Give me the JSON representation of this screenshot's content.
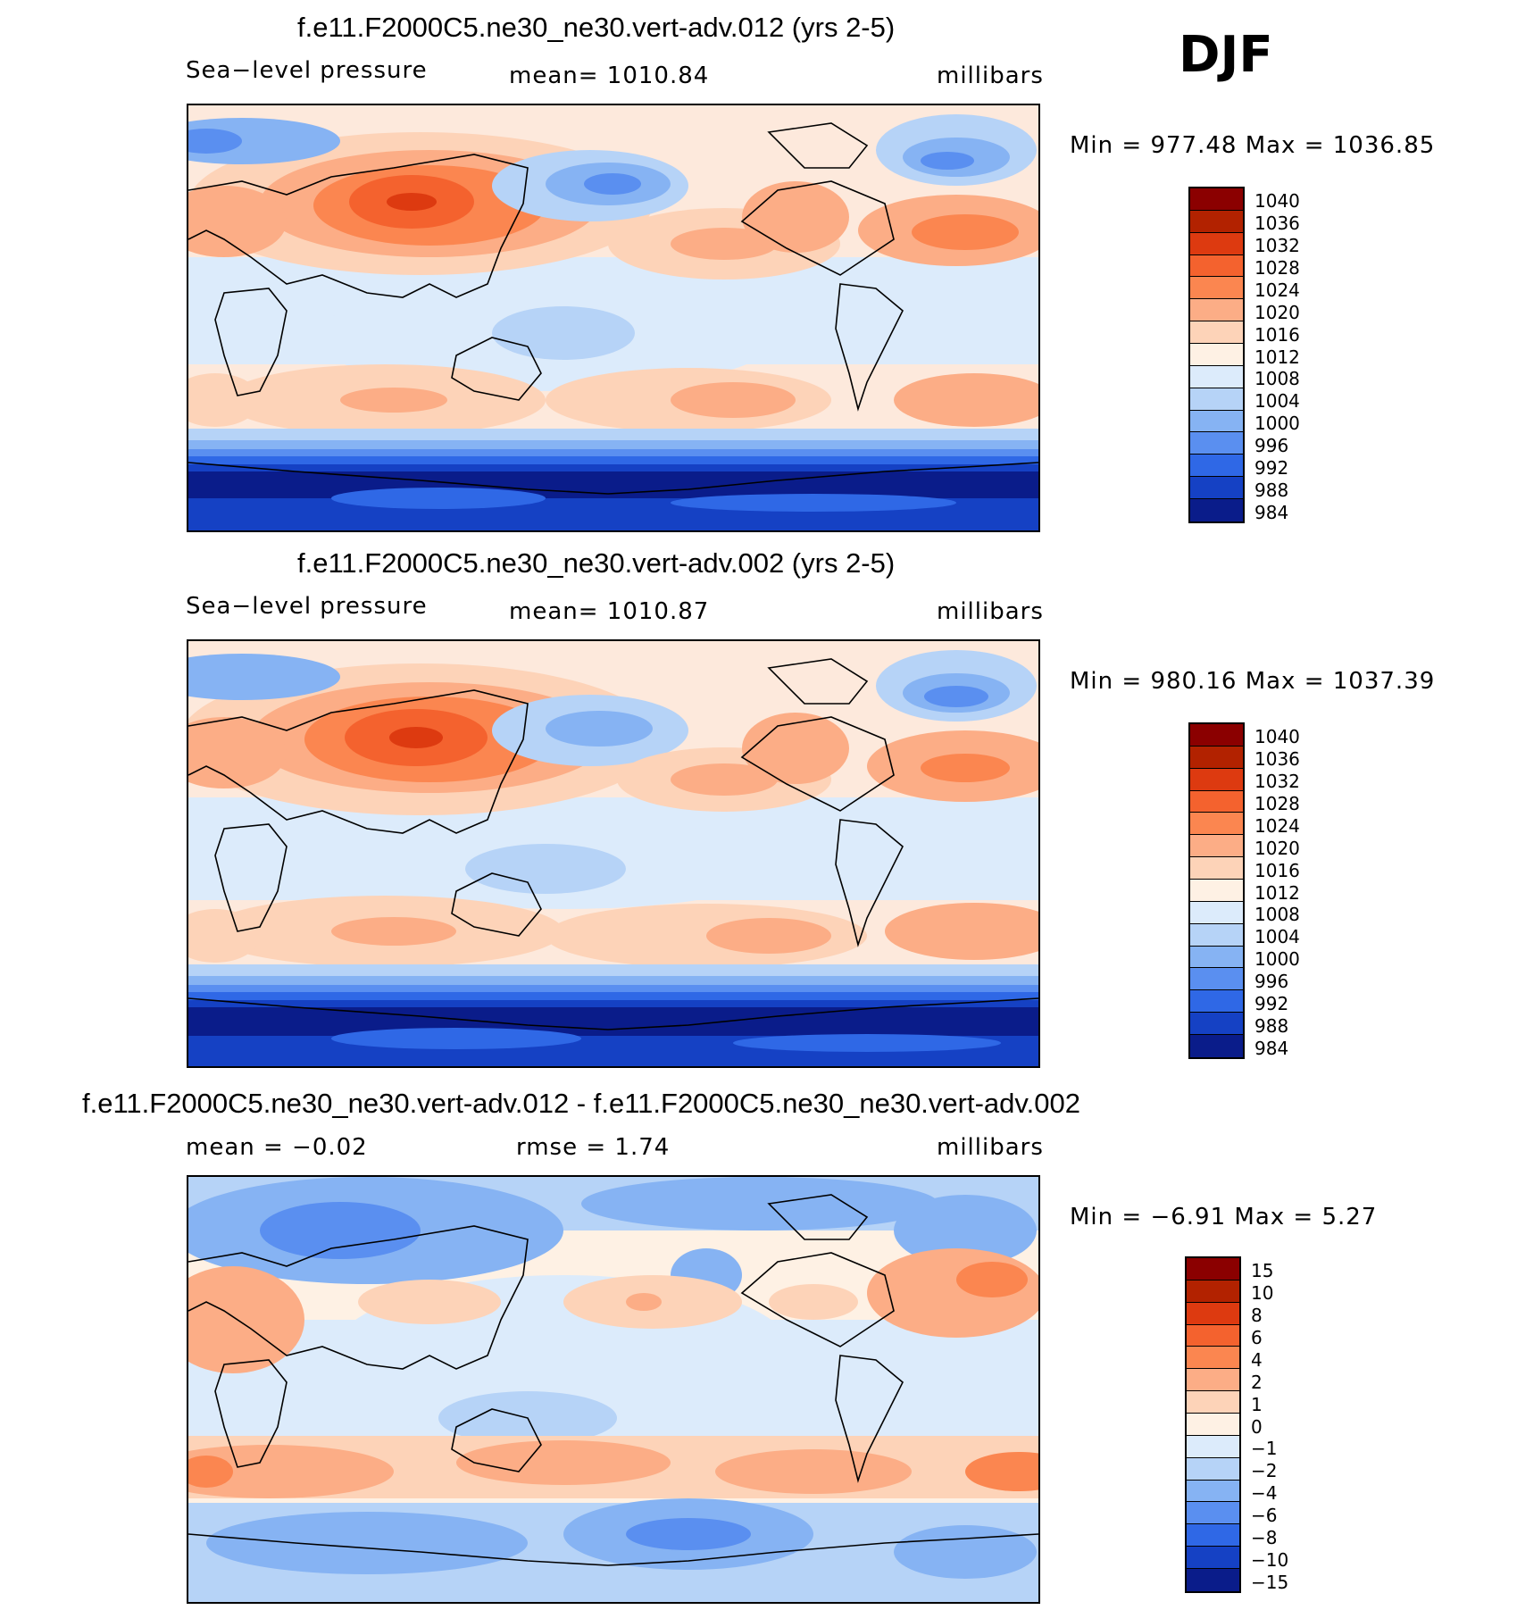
{
  "season": "DJF",
  "panels": [
    {
      "title": "f.e11.F2000C5.ne30_ne30.vert-adv.012 (yrs 2-5)",
      "left_label": "Sea−level pressure",
      "mid_label": "mean=  1010.84",
      "units": "millibars",
      "minmax": "Min  =  977.48  Max  =  1036.85",
      "colorbar": {
        "levels": [
          "1040",
          "1036",
          "1032",
          "1028",
          "1024",
          "1020",
          "1016",
          "1012",
          "1008",
          "1004",
          "1000",
          "996",
          "992",
          "988",
          "984"
        ],
        "colors": [
          "#8b0000",
          "#b22200",
          "#dd3a10",
          "#f4622e",
          "#fb8650",
          "#fcad86",
          "#fdd3b8",
          "#fef1e4",
          "#dcebfb",
          "#b6d3f7",
          "#86b3f3",
          "#5a8ff0",
          "#2f68e6",
          "#1541c4",
          "#0a1c8a"
        ]
      }
    },
    {
      "title": "f.e11.F2000C5.ne30_ne30.vert-adv.002 (yrs 2-5)",
      "left_label": "Sea−level pressure",
      "mid_label": "mean=  1010.87",
      "units": "millibars",
      "minmax": "Min  =  980.16  Max  =  1037.39",
      "colorbar": {
        "levels": [
          "1040",
          "1036",
          "1032",
          "1028",
          "1024",
          "1020",
          "1016",
          "1012",
          "1008",
          "1004",
          "1000",
          "996",
          "992",
          "988",
          "984"
        ],
        "colors": [
          "#8b0000",
          "#b22200",
          "#dd3a10",
          "#f4622e",
          "#fb8650",
          "#fcad86",
          "#fdd3b8",
          "#fef1e4",
          "#dcebfb",
          "#b6d3f7",
          "#86b3f3",
          "#5a8ff0",
          "#2f68e6",
          "#1541c4",
          "#0a1c8a"
        ]
      }
    },
    {
      "title": "f.e11.F2000C5.ne30_ne30.vert-adv.012 - f.e11.F2000C5.ne30_ne30.vert-adv.002",
      "left_label": "mean  =    −0.02",
      "mid_label": "rmse  =     1.74",
      "units": "millibars",
      "minmax": "Min  =    −6.91  Max  =      5.27",
      "colorbar": {
        "levels": [
          "15",
          "10",
          "8",
          "6",
          "4",
          "2",
          "1",
          "0",
          "−1",
          "−2",
          "−4",
          "−6",
          "−8",
          "−10",
          "−15"
        ],
        "colors": [
          "#8b0000",
          "#b22200",
          "#dd3a10",
          "#f4622e",
          "#fb8650",
          "#fcad86",
          "#fdd3b8",
          "#fef1e4",
          "#dcebfb",
          "#b6d3f7",
          "#86b3f3",
          "#5a8ff0",
          "#2f68e6",
          "#1541c4",
          "#0a1c8a"
        ]
      }
    }
  ]
}
